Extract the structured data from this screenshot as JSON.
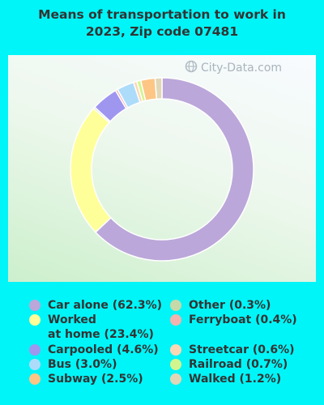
{
  "chart_data": {
    "type": "pie",
    "title": "Means of transportation to work in 2023, Zip code 07481",
    "categories": [
      "Car alone",
      "Worked at home",
      "Carpooled",
      "Bus",
      "Subway",
      "Other",
      "Ferryboat",
      "Streetcar",
      "Railroad",
      "Walked"
    ],
    "values": [
      62.3,
      23.4,
      4.6,
      3.0,
      2.5,
      0.3,
      0.4,
      0.6,
      0.7,
      1.2
    ],
    "colors": [
      "#bba7d9",
      "#ffff99",
      "#9f96f0",
      "#addcfa",
      "#fdc685",
      "#c6d9a9",
      "#f4b3ae",
      "#fbd8b4",
      "#d3f58e",
      "#e1d7b7"
    ],
    "slice_order": [
      0,
      1,
      5,
      2,
      6,
      3,
      7,
      8,
      4,
      9
    ],
    "legend": [
      [
        "Car alone (62.3%)"
      ],
      [
        "Worked",
        "at home (23.4%)"
      ],
      [
        "Carpooled (4.6%)"
      ],
      [
        "Bus (3.0%)"
      ],
      [
        "Subway (2.5%)"
      ],
      [
        "Other (0.3%)"
      ],
      [
        "Ferryboat (0.4%)"
      ],
      [
        "Streetcar (0.6%)"
      ],
      [
        "Railroad (0.7%)"
      ],
      [
        "Walked (1.2%)"
      ]
    ],
    "donut": true,
    "legend_position": "bottom"
  },
  "title_lines": [
    "Means of transportation to work in",
    "2023, Zip code 07481"
  ],
  "watermark": "City-Data.com",
  "watermark_icon": "globe-icon"
}
